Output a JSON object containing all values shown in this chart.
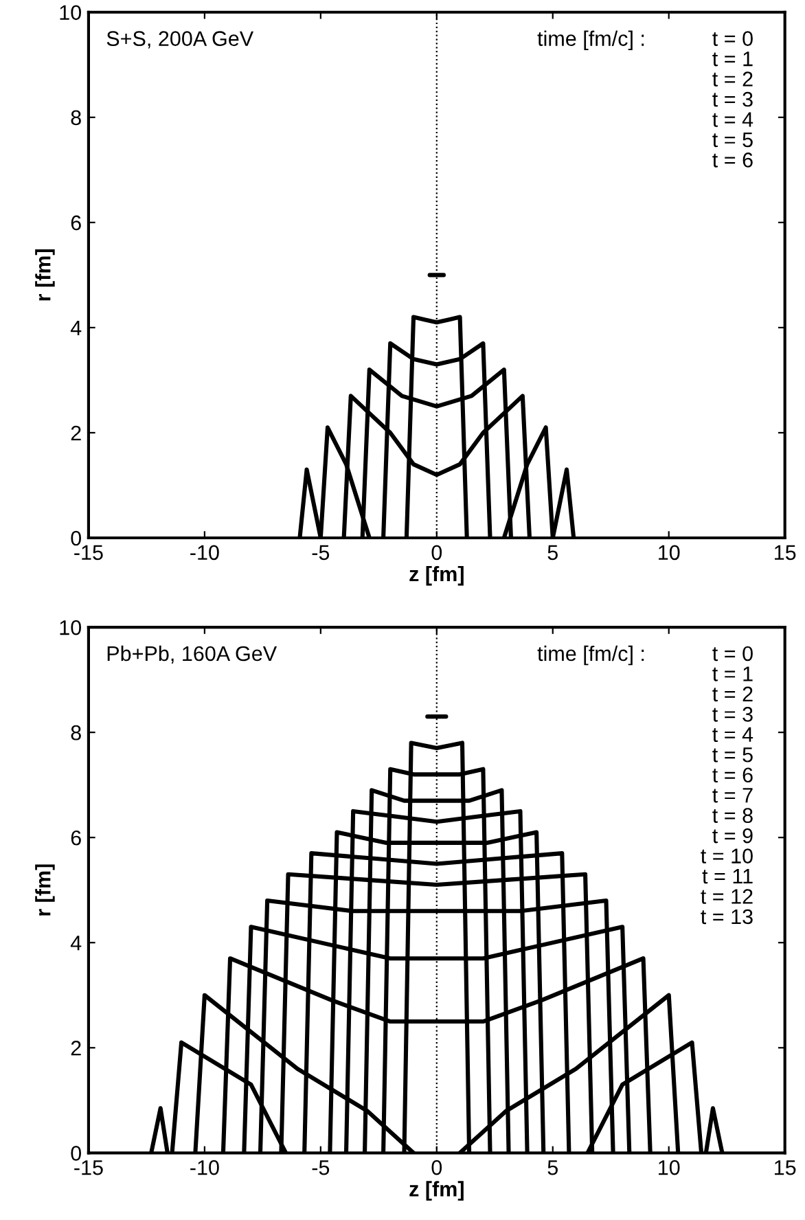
{
  "chart_data": [
    {
      "type": "line",
      "xlabel": "z [fm]",
      "ylabel": "r [fm]",
      "xlim": [
        -15,
        15
      ],
      "xticks": [
        -15,
        -10,
        -5,
        0,
        5,
        10,
        15
      ],
      "ylim": [
        0,
        10
      ],
      "yticks": [
        0,
        2,
        4,
        6,
        8,
        10
      ],
      "line_style": "solid",
      "marker": "none",
      "grid": false,
      "annotations": [
        "S+S, 200A GeV",
        "time [fm/c] :",
        "t = 0",
        "t = 1",
        "t = 2",
        "t = 3",
        "t = 4",
        "t = 5",
        "t = 6"
      ],
      "ref_lines": [
        {
          "axis": "x",
          "value": 0,
          "line_style": "dotted",
          "color": "#000000"
        }
      ],
      "series": [
        {
          "color": "#000000",
          "x": [
            -0.3,
            0.3
          ],
          "values": [
            5.0,
            5.0
          ]
        },
        {
          "color": "#000000",
          "x": [
            -1.3,
            -1.0,
            -0.5,
            0,
            0.5,
            1.0,
            1.3
          ],
          "values": [
            0,
            4.2,
            4.15,
            4.1,
            4.15,
            4.2,
            0
          ]
        },
        {
          "color": "#000000",
          "x": [
            -2.3,
            -2.0,
            -1,
            0,
            1,
            2.0,
            2.3
          ],
          "values": [
            0,
            3.7,
            3.4,
            3.3,
            3.4,
            3.7,
            0
          ]
        },
        {
          "color": "#000000",
          "x": [
            -3.2,
            -2.9,
            -1.5,
            0,
            1.5,
            2.9,
            3.2
          ],
          "values": [
            0,
            3.2,
            2.7,
            2.5,
            2.7,
            3.2,
            0
          ]
        },
        {
          "color": "#000000",
          "x": [
            -4.0,
            -3.7,
            -2,
            -1,
            0,
            1,
            2,
            3.7,
            4.0
          ],
          "values": [
            0,
            2.7,
            2.0,
            1.4,
            1.2,
            1.4,
            2.0,
            2.7,
            0
          ]
        },
        {
          "color": "#000000",
          "x": [
            -5.0,
            -4.7,
            -3.9,
            -2.9,
            0,
            2.9,
            3.9,
            4.7,
            5.0
          ],
          "values": [
            0,
            2.1,
            1.4,
            0,
            null,
            0,
            1.4,
            2.1,
            0
          ]
        },
        {
          "color": "#000000",
          "x": [
            -5.9,
            -5.6,
            -5.0,
            0,
            5.0,
            5.6,
            5.9
          ],
          "values": [
            0,
            1.3,
            0,
            null,
            0,
            1.3,
            0
          ]
        }
      ]
    },
    {
      "type": "line",
      "xlabel": "z [fm]",
      "ylabel": "r [fm]",
      "xlim": [
        -15,
        15
      ],
      "xticks": [
        -15,
        -10,
        -5,
        0,
        5,
        10,
        15
      ],
      "ylim": [
        0,
        10
      ],
      "yticks": [
        0,
        2,
        4,
        6,
        8,
        10
      ],
      "line_style": "solid",
      "marker": "none",
      "grid": false,
      "annotations": [
        "Pb+Pb, 160A GeV",
        "time [fm/c] :",
        "t = 0",
        "t = 1",
        "t = 2",
        "t = 3",
        "t = 4",
        "t = 5",
        "t = 6",
        "t = 7",
        "t = 8",
        "t = 9",
        "t = 10",
        "t = 11",
        "t = 12",
        "t = 13"
      ],
      "ref_lines": [
        {
          "axis": "x",
          "value": 0,
          "line_style": "dotted",
          "color": "#000000"
        }
      ],
      "series": [
        {
          "color": "#000000",
          "x": [
            -0.4,
            0.4
          ],
          "values": [
            8.3,
            8.3
          ]
        },
        {
          "color": "#000000",
          "x": [
            -1.4,
            -1.1,
            0,
            1.1,
            1.4
          ],
          "values": [
            0,
            7.8,
            7.7,
            7.8,
            0
          ]
        },
        {
          "color": "#000000",
          "x": [
            -2.3,
            -2.0,
            -1,
            0,
            1,
            2.0,
            2.3
          ],
          "values": [
            0,
            7.3,
            7.2,
            7.2,
            7.2,
            7.3,
            0
          ]
        },
        {
          "color": "#000000",
          "x": [
            -3.1,
            -2.8,
            -1.4,
            0,
            1.4,
            2.8,
            3.1
          ],
          "values": [
            0,
            6.9,
            6.7,
            6.7,
            6.7,
            6.9,
            0
          ]
        },
        {
          "color": "#000000",
          "x": [
            -3.9,
            -3.6,
            -1.8,
            0,
            1.8,
            3.6,
            3.9
          ],
          "values": [
            0,
            6.5,
            6.4,
            6.3,
            6.4,
            6.5,
            0
          ]
        },
        {
          "color": "#000000",
          "x": [
            -4.6,
            -4.3,
            -2.2,
            0,
            2.2,
            4.3,
            4.6
          ],
          "values": [
            0,
            6.1,
            5.9,
            5.9,
            5.9,
            6.1,
            0
          ]
        },
        {
          "color": "#000000",
          "x": [
            -5.7,
            -5.4,
            -2.7,
            0,
            2.7,
            5.4,
            5.7
          ],
          "values": [
            0,
            5.7,
            5.6,
            5.5,
            5.6,
            5.7,
            0
          ]
        },
        {
          "color": "#000000",
          "x": [
            -6.7,
            -6.4,
            -3.2,
            0,
            3.2,
            6.4,
            6.7
          ],
          "values": [
            0,
            5.3,
            5.2,
            5.1,
            5.2,
            5.3,
            0
          ]
        },
        {
          "color": "#000000",
          "x": [
            -7.6,
            -7.3,
            -3.6,
            0,
            3.6,
            7.3,
            7.6
          ],
          "values": [
            0,
            4.8,
            4.6,
            4.6,
            4.6,
            4.8,
            0
          ]
        },
        {
          "color": "#000000",
          "x": [
            -8.3,
            -8.0,
            -4,
            -2,
            0,
            2,
            4,
            8.0,
            8.3
          ],
          "values": [
            0,
            4.3,
            3.9,
            3.7,
            3.7,
            3.7,
            3.9,
            4.3,
            0
          ]
        },
        {
          "color": "#000000",
          "x": [
            -9.2,
            -8.9,
            -4.5,
            -2,
            0,
            2,
            4.5,
            8.9,
            9.2
          ],
          "values": [
            0,
            3.7,
            2.9,
            2.5,
            2.5,
            2.5,
            2.9,
            3.7,
            0
          ]
        },
        {
          "color": "#000000",
          "x": [
            -10.4,
            -10.0,
            -6,
            -3,
            -1,
            0,
            1,
            3,
            6,
            10.0,
            10.4
          ],
          "values": [
            0,
            3.0,
            1.6,
            0.8,
            0,
            null,
            0,
            0.8,
            1.6,
            3.0,
            0
          ]
        },
        {
          "color": "#000000",
          "x": [
            -11.4,
            -11.0,
            -8,
            -6.5,
            0,
            6.5,
            8,
            11.0,
            11.4
          ],
          "values": [
            0,
            2.1,
            1.3,
            0,
            null,
            0,
            1.3,
            2.1,
            0
          ]
        },
        {
          "color": "#000000",
          "x": [
            -12.3,
            -11.9,
            -11.6,
            0,
            11.6,
            11.9,
            12.3
          ],
          "values": [
            0,
            0.85,
            0,
            null,
            0,
            0.85,
            0
          ]
        }
      ]
    }
  ]
}
